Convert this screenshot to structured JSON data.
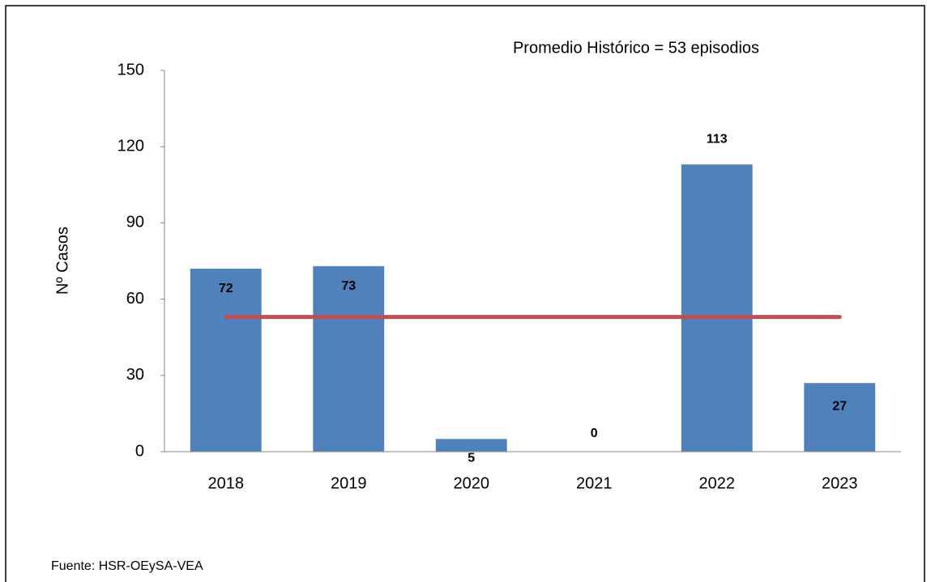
{
  "chart_data": {
    "type": "bar",
    "annotation": "Promedio Histórico  = 53 episodios",
    "ylabel": "Nº  Casos",
    "source": "Fuente: HSR-OEySA-VEA",
    "categories": [
      "2018",
      "2019",
      "2020",
      "2021",
      "2022",
      "2023"
    ],
    "series": [
      {
        "type": "bar",
        "color": "#4f81bd",
        "values": [
          72,
          73,
          5,
          0,
          113,
          27
        ]
      },
      {
        "type": "line",
        "color": "#c0504d",
        "values": [
          53,
          53,
          53,
          53,
          53,
          53
        ]
      }
    ],
    "ylim": [
      0,
      150
    ],
    "yticks": [
      0,
      30,
      60,
      90,
      120,
      150
    ],
    "grid": false
  }
}
